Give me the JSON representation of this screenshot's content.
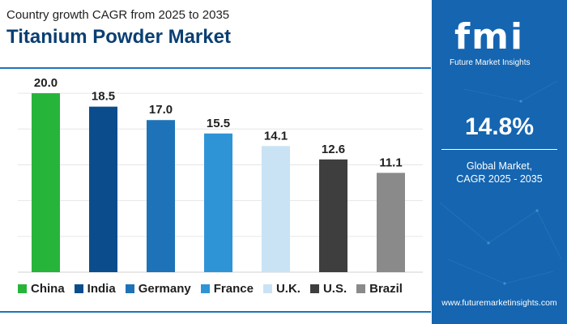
{
  "header": {
    "subtitle": "Country growth CAGR from 2025 to 2035",
    "title": "Titanium Powder Market"
  },
  "chart_data": {
    "type": "bar",
    "categories": [
      "China",
      "India",
      "Germany",
      "France",
      "U.K.",
      "U.S.",
      "Brazil"
    ],
    "values": [
      20.0,
      18.5,
      17.0,
      15.5,
      14.1,
      12.6,
      11.1
    ],
    "value_labels": [
      "20.0",
      "18.5",
      "17.0",
      "15.5",
      "14.1",
      "12.6",
      "11.1"
    ],
    "colors": [
      "#27b43a",
      "#0b4d8c",
      "#1e72b8",
      "#2f94d6",
      "#c9e3f5",
      "#3e3e3e",
      "#8a8a8a"
    ],
    "ylim": [
      0,
      22
    ],
    "grid": true,
    "legend_position": "bottom"
  },
  "panel": {
    "logo_text": "fmi",
    "logo_tagline": "Future Market Insights",
    "cagr_value": "14.8%",
    "cagr_label_line1": "Global Market,",
    "cagr_label_line2": "CAGR 2025 - 2035",
    "url": "www.futuremarketinsights.com"
  }
}
